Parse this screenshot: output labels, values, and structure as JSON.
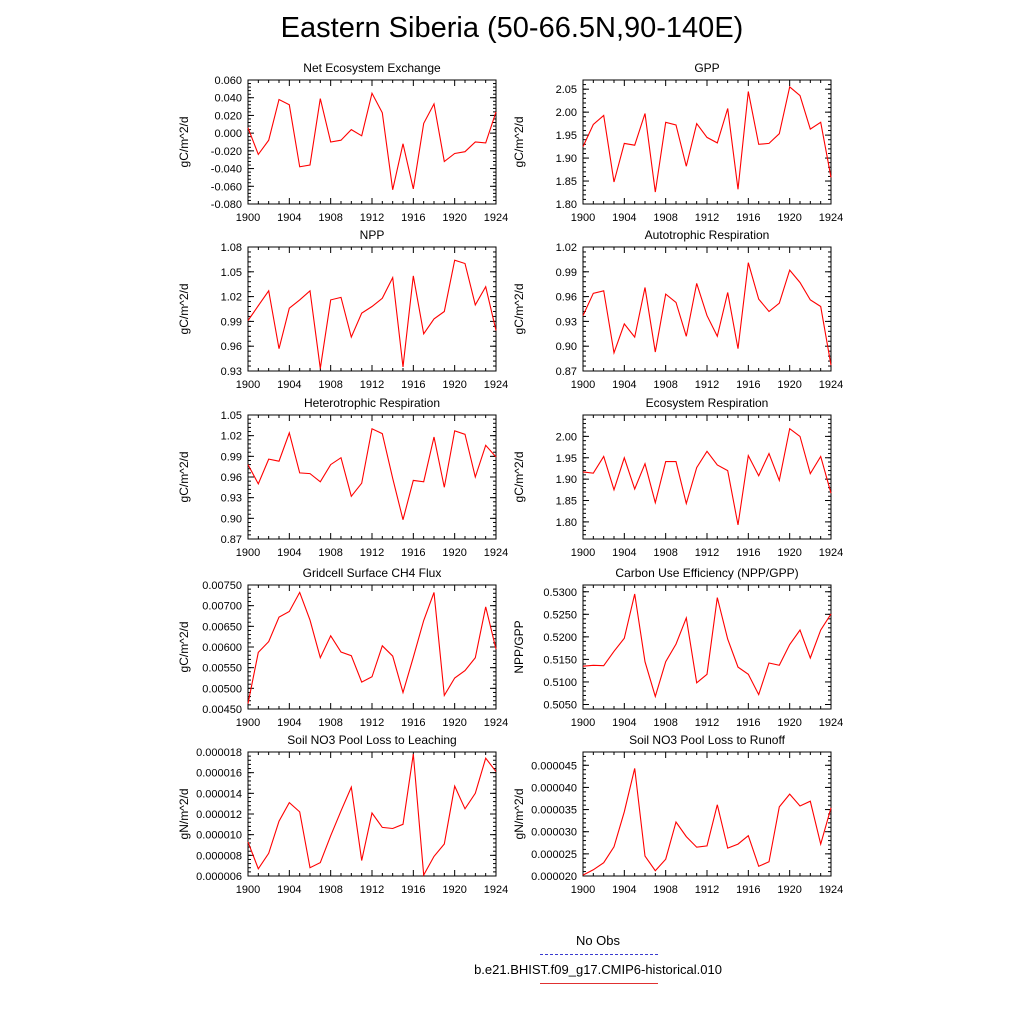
{
  "title": "Eastern Siberia (50-66.5N,90-140E)",
  "legend": {
    "obs_label": "No Obs",
    "obs_color": "#3a3ad0",
    "model_label": "b.e21.BHIST.f09_g17.CMIP6-historical.010",
    "model_color": "#ff0000"
  },
  "chart_data": [
    {
      "type": "line",
      "title": "Net Ecosystem Exchange",
      "ylabel": "gC/m^2/d",
      "ylim": [
        -0.08,
        0.06
      ],
      "yticks": [
        "-0.080",
        "-0.060",
        "-0.040",
        "-0.020",
        "0.000",
        "0.020",
        "0.040",
        "0.060"
      ],
      "yticks_values": [
        -0.08,
        -0.06,
        -0.04,
        -0.02,
        0.0,
        0.02,
        0.04,
        0.06
      ],
      "xticks": [
        "1900",
        "1904",
        "1908",
        "1912",
        "1916",
        "1920",
        "1924"
      ],
      "x": [
        1900,
        1901,
        1902,
        1903,
        1904,
        1905,
        1906,
        1907,
        1908,
        1909,
        1910,
        1911,
        1912,
        1913,
        1914,
        1915,
        1916,
        1917,
        1918,
        1919,
        1920,
        1921,
        1922,
        1923,
        1924
      ],
      "values": [
        0.006,
        -0.024,
        -0.008,
        0.038,
        0.032,
        -0.038,
        -0.036,
        0.039,
        -0.01,
        -0.008,
        0.004,
        -0.003,
        0.045,
        0.023,
        -0.064,
        -0.012,
        -0.063,
        0.011,
        0.033,
        -0.032,
        -0.023,
        -0.021,
        -0.01,
        -0.011,
        0.024
      ]
    },
    {
      "type": "line",
      "title": "GPP",
      "ylabel": "gC/m^2/d",
      "ylim": [
        1.8,
        2.07
      ],
      "yticks": [
        "1.80",
        "1.85",
        "1.90",
        "1.95",
        "2.00",
        "2.05"
      ],
      "yticks_values": [
        1.8,
        1.85,
        1.9,
        1.95,
        2.0,
        2.05
      ],
      "xticks": [
        "1900",
        "1904",
        "1908",
        "1912",
        "1916",
        "1920",
        "1924"
      ],
      "x": [
        1900,
        1901,
        1902,
        1903,
        1904,
        1905,
        1906,
        1907,
        1908,
        1909,
        1910,
        1911,
        1912,
        1913,
        1914,
        1915,
        1916,
        1917,
        1918,
        1919,
        1920,
        1921,
        1922,
        1923,
        1924
      ],
      "values": [
        1.925,
        1.973,
        1.993,
        1.848,
        1.932,
        1.928,
        1.997,
        1.826,
        1.978,
        1.972,
        1.882,
        1.975,
        1.945,
        1.933,
        2.008,
        1.832,
        2.045,
        1.93,
        1.932,
        1.953,
        2.055,
        2.036,
        1.963,
        1.978,
        1.858
      ]
    },
    {
      "type": "line",
      "title": "NPP",
      "ylabel": "gC/m^2/d",
      "ylim": [
        0.93,
        1.08
      ],
      "yticks": [
        "0.93",
        "0.96",
        "0.99",
        "1.02",
        "1.05",
        "1.08"
      ],
      "yticks_values": [
        0.93,
        0.96,
        0.99,
        1.02,
        1.05,
        1.08
      ],
      "xticks": [
        "1900",
        "1904",
        "1908",
        "1912",
        "1916",
        "1920",
        "1924"
      ],
      "x": [
        1900,
        1901,
        1902,
        1903,
        1904,
        1905,
        1906,
        1907,
        1908,
        1909,
        1910,
        1911,
        1912,
        1913,
        1914,
        1915,
        1916,
        1917,
        1918,
        1919,
        1920,
        1921,
        1922,
        1923,
        1924
      ],
      "values": [
        0.991,
        1.009,
        1.027,
        0.957,
        1.006,
        1.016,
        1.027,
        0.933,
        1.016,
        1.019,
        0.971,
        1.0,
        1.008,
        1.018,
        1.043,
        0.935,
        1.045,
        0.975,
        0.993,
        1.002,
        1.064,
        1.06,
        1.01,
        1.032,
        0.979
      ]
    },
    {
      "type": "line",
      "title": "Autotrophic Respiration",
      "ylabel": "gC/m^2/d",
      "ylim": [
        0.87,
        1.02
      ],
      "yticks": [
        "0.87",
        "0.90",
        "0.93",
        "0.96",
        "0.99",
        "1.02"
      ],
      "yticks_values": [
        0.87,
        0.9,
        0.93,
        0.96,
        0.99,
        1.02
      ],
      "xticks": [
        "1900",
        "1904",
        "1908",
        "1912",
        "1916",
        "1920",
        "1924"
      ],
      "x": [
        1900,
        1901,
        1902,
        1903,
        1904,
        1905,
        1906,
        1907,
        1908,
        1909,
        1910,
        1911,
        1912,
        1913,
        1914,
        1915,
        1916,
        1917,
        1918,
        1919,
        1920,
        1921,
        1922,
        1923,
        1924
      ],
      "values": [
        0.937,
        0.964,
        0.967,
        0.892,
        0.927,
        0.911,
        0.971,
        0.893,
        0.963,
        0.953,
        0.912,
        0.976,
        0.937,
        0.912,
        0.965,
        0.897,
        1.001,
        0.957,
        0.942,
        0.952,
        0.992,
        0.977,
        0.956,
        0.948,
        0.877
      ]
    },
    {
      "type": "line",
      "title": "Heterotrophic Respiration",
      "ylabel": "gC/m^2/d",
      "ylim": [
        0.87,
        1.05
      ],
      "yticks": [
        "0.87",
        "0.90",
        "0.93",
        "0.96",
        "0.99",
        "1.02",
        "1.05"
      ],
      "yticks_values": [
        0.87,
        0.9,
        0.93,
        0.96,
        0.99,
        1.02,
        1.05
      ],
      "xticks": [
        "1900",
        "1904",
        "1908",
        "1912",
        "1916",
        "1920",
        "1924"
      ],
      "x": [
        1900,
        1901,
        1902,
        1903,
        1904,
        1905,
        1906,
        1907,
        1908,
        1909,
        1910,
        1911,
        1912,
        1913,
        1914,
        1915,
        1916,
        1917,
        1918,
        1919,
        1920,
        1921,
        1922,
        1923,
        1924
      ],
      "values": [
        0.978,
        0.95,
        0.986,
        0.983,
        1.024,
        0.966,
        0.965,
        0.953,
        0.978,
        0.988,
        0.932,
        0.951,
        1.03,
        1.023,
        0.958,
        0.898,
        0.955,
        0.953,
        1.018,
        0.945,
        1.027,
        1.022,
        0.96,
        1.006,
        0.989
      ]
    },
    {
      "type": "line",
      "title": "Ecosystem Respiration",
      "ylabel": "gC/m^2/d",
      "ylim": [
        1.76,
        2.05
      ],
      "yticks": [
        "1.80",
        "1.85",
        "1.90",
        "1.95",
        "2.00"
      ],
      "yticks_values": [
        1.8,
        1.85,
        1.9,
        1.95,
        2.0
      ],
      "xticks": [
        "1900",
        "1904",
        "1908",
        "1912",
        "1916",
        "1920",
        "1924"
      ],
      "x": [
        1900,
        1901,
        1902,
        1903,
        1904,
        1905,
        1906,
        1907,
        1908,
        1909,
        1910,
        1911,
        1912,
        1913,
        1914,
        1915,
        1916,
        1917,
        1918,
        1919,
        1920,
        1921,
        1922,
        1923,
        1924
      ],
      "values": [
        1.917,
        1.914,
        1.953,
        1.875,
        1.95,
        1.877,
        1.936,
        1.845,
        1.941,
        1.941,
        1.843,
        1.927,
        1.965,
        1.933,
        1.92,
        1.793,
        1.955,
        1.908,
        1.96,
        1.897,
        2.018,
        2.0,
        1.913,
        1.953,
        1.867
      ]
    },
    {
      "type": "line",
      "title": "Gridcell Surface CH4 Flux",
      "ylabel": "gC/m^2/d",
      "ylim": [
        0.0045,
        0.0075
      ],
      "yticks": [
        "0.00450",
        "0.00500",
        "0.00550",
        "0.00600",
        "0.00650",
        "0.00700",
        "0.00750"
      ],
      "yticks_values": [
        0.0045,
        0.005,
        0.0055,
        0.006,
        0.0065,
        0.007,
        0.0075
      ],
      "xticks": [
        "1900",
        "1904",
        "1908",
        "1912",
        "1916",
        "1920",
        "1924"
      ],
      "x": [
        1900,
        1901,
        1902,
        1903,
        1904,
        1905,
        1906,
        1907,
        1908,
        1909,
        1910,
        1911,
        1912,
        1913,
        1914,
        1915,
        1916,
        1917,
        1918,
        1919,
        1920,
        1921,
        1922,
        1923,
        1924
      ],
      "values": [
        0.00463,
        0.00587,
        0.00613,
        0.00672,
        0.00686,
        0.00732,
        0.00665,
        0.00574,
        0.00627,
        0.00588,
        0.00579,
        0.00515,
        0.00528,
        0.00603,
        0.00578,
        0.0049,
        0.00575,
        0.00664,
        0.00732,
        0.00483,
        0.00525,
        0.00543,
        0.00574,
        0.00697,
        0.00595
      ]
    },
    {
      "type": "line",
      "title": "Carbon Use Efficiency (NPP/GPP)",
      "ylabel": "NPP/GPP",
      "ylim": [
        0.504,
        0.5315
      ],
      "yticks": [
        "0.5050",
        "0.5100",
        "0.5150",
        "0.5200",
        "0.5250",
        "0.5300"
      ],
      "yticks_values": [
        0.505,
        0.51,
        0.515,
        0.52,
        0.525,
        0.53
      ],
      "xticks": [
        "1900",
        "1904",
        "1908",
        "1912",
        "1916",
        "1920",
        "1924"
      ],
      "x": [
        1900,
        1901,
        1902,
        1903,
        1904,
        1905,
        1906,
        1907,
        1908,
        1909,
        1910,
        1911,
        1912,
        1913,
        1914,
        1915,
        1916,
        1917,
        1918,
        1919,
        1920,
        1921,
        1922,
        1923,
        1924
      ],
      "values": [
        0.5135,
        0.5137,
        0.5136,
        0.5168,
        0.5197,
        0.5295,
        0.5145,
        0.5068,
        0.5145,
        0.5184,
        0.5242,
        0.5098,
        0.5117,
        0.5287,
        0.5195,
        0.5133,
        0.5117,
        0.5072,
        0.5142,
        0.5137,
        0.5183,
        0.5215,
        0.5153,
        0.5215,
        0.5251
      ]
    },
    {
      "type": "line",
      "title": "Soil NO3 Pool Loss to Leaching",
      "ylabel": "gN/m^2/d",
      "ylim": [
        6e-06,
        1.8e-05
      ],
      "yticks": [
        "0.000006",
        "0.000008",
        "0.000010",
        "0.000012",
        "0.000014",
        "0.000016",
        "0.000018"
      ],
      "yticks_values": [
        6e-06,
        8e-06,
        1e-05,
        1.2e-05,
        1.4e-05,
        1.6e-05,
        1.8e-05
      ],
      "xticks": [
        "1900",
        "1904",
        "1908",
        "1912",
        "1916",
        "1920",
        "1924"
      ],
      "x": [
        1900,
        1901,
        1902,
        1903,
        1904,
        1905,
        1906,
        1907,
        1908,
        1909,
        1910,
        1911,
        1912,
        1913,
        1914,
        1915,
        1916,
        1917,
        1918,
        1919,
        1920,
        1921,
        1922,
        1923,
        1924
      ],
      "values": [
        9.3e-06,
        6.7e-06,
        8.2e-06,
        1.13e-05,
        1.31e-05,
        1.22e-05,
        6.8e-06,
        7.3e-06,
        9.9e-06,
        1.23e-05,
        1.46e-05,
        7.5e-06,
        1.21e-05,
        1.07e-05,
        1.06e-05,
        1.1e-05,
        1.78e-05,
        6.1e-06,
        7.9e-06,
        9.1e-06,
        1.47e-05,
        1.25e-05,
        1.4e-05,
        1.74e-05,
        1.61e-05
      ]
    },
    {
      "type": "line",
      "title": "Soil NO3 Pool Loss to Runoff",
      "ylabel": "gN/m^2/d",
      "ylim": [
        2e-05,
        4.8e-05
      ],
      "yticks": [
        "0.000020",
        "0.000025",
        "0.000030",
        "0.000035",
        "0.000040",
        "0.000045"
      ],
      "yticks_values": [
        2e-05,
        2.5e-05,
        3e-05,
        3.5e-05,
        4e-05,
        4.5e-05
      ],
      "xticks": [
        "1900",
        "1904",
        "1908",
        "1912",
        "1916",
        "1920",
        "1924"
      ],
      "x": [
        1900,
        1901,
        1902,
        1903,
        1904,
        1905,
        1906,
        1907,
        1908,
        1909,
        1910,
        1911,
        1912,
        1913,
        1914,
        1915,
        1916,
        1917,
        1918,
        1919,
        1920,
        1921,
        1922,
        1923,
        1924
      ],
      "values": [
        2.02e-05,
        2.14e-05,
        2.3e-05,
        2.66e-05,
        3.45e-05,
        4.43e-05,
        2.45e-05,
        2.12e-05,
        2.38e-05,
        3.22e-05,
        2.89e-05,
        2.65e-05,
        2.68e-05,
        3.61e-05,
        2.63e-05,
        2.72e-05,
        2.91e-05,
        2.22e-05,
        2.32e-05,
        3.56e-05,
        3.85e-05,
        3.58e-05,
        3.69e-05,
        2.72e-05,
        3.54e-05
      ]
    }
  ]
}
